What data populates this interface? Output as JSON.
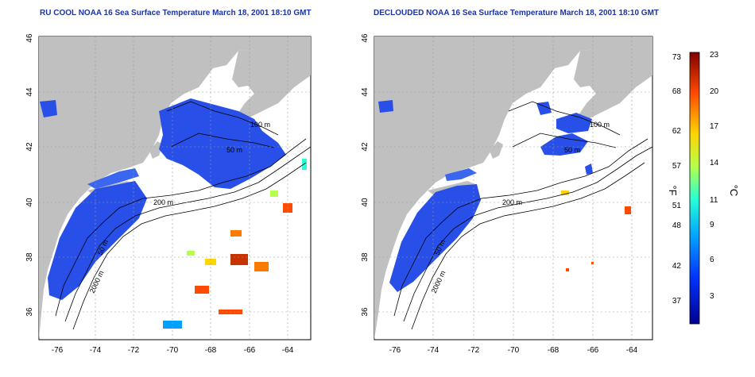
{
  "left_map": {
    "title": "RU COOL NOAA 16 Sea Surface Temperature March 18, 2001 18:10 GMT",
    "contours": [
      "100 m",
      "50 m",
      "200 m",
      "50 m",
      "2000 m"
    ]
  },
  "right_map": {
    "title": "DECLOUDED NOAA 16 Sea Surface Temperature March 18, 2001 18:10 GMT",
    "contours": [
      "100 m",
      "50 m",
      "200 m",
      "50 m",
      "2000 m"
    ]
  },
  "axes": {
    "lat_ticks": [
      "36",
      "38",
      "40",
      "42",
      "44",
      "46"
    ],
    "lon_ticks": [
      "-76",
      "-74",
      "-72",
      "-70",
      "-68",
      "-66",
      "-64"
    ]
  },
  "colorbar": {
    "unit_f": "°F",
    "unit_c": "°C",
    "f_ticks": [
      "73",
      "68",
      "62",
      "57",
      "51",
      "48",
      "42",
      "37"
    ],
    "c_ticks": [
      "23",
      "20",
      "17",
      "14",
      "11",
      "9",
      "6",
      "3"
    ],
    "colors": [
      "#00008f",
      "#0033ff",
      "#00a0ff",
      "#29ffd6",
      "#b5ff4a",
      "#ffd500",
      "#ff4a00",
      "#800000"
    ]
  },
  "palette": {
    "land": "#c0c0c0",
    "sea_blue": "#2850e8",
    "title": "#1a33a6"
  }
}
